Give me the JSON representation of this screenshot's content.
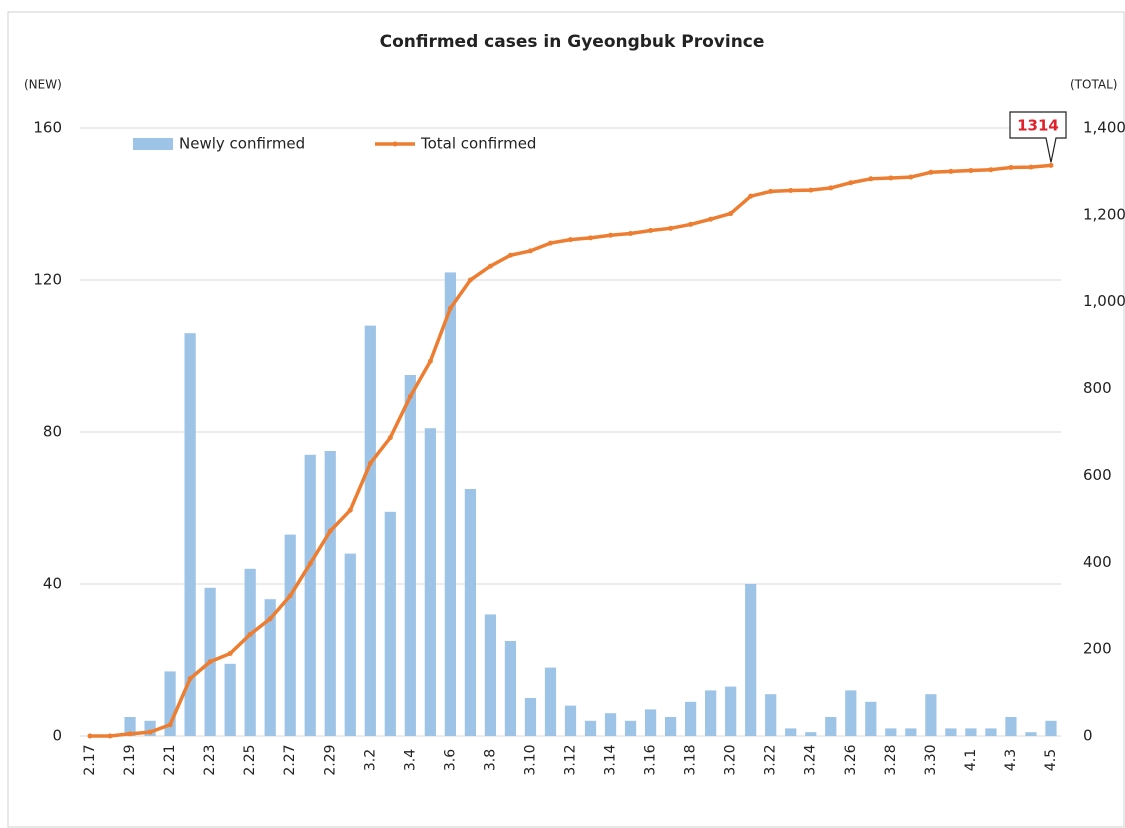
{
  "chart_data": {
    "type": "bar_line",
    "title": "Confirmed cases in Gyeongbuk Province",
    "y_label": "(NEW)",
    "y2_label": "(TOTAL)",
    "annotation": "1314",
    "categories": [
      "2.17",
      null,
      "2.19",
      null,
      "2.21",
      null,
      "2.23",
      null,
      "2.25",
      null,
      "2.27",
      null,
      "2.29",
      null,
      "3.2",
      null,
      "3.4",
      null,
      "3.6",
      null,
      "3.8",
      null,
      "3.10",
      null,
      "3.12",
      null,
      "3.14",
      null,
      "3.16",
      null,
      "3.18",
      null,
      "3.20",
      null,
      "3.22",
      null,
      "3.24",
      null,
      "3.26",
      null,
      "3.28",
      null,
      "3.30",
      null,
      "4.1",
      null,
      "4.3",
      null,
      "4.5"
    ],
    "series": [
      {
        "name": "Newly confirmed",
        "color": "#9dc3e6",
        "type": "bar",
        "axis": "y",
        "values": [
          0,
          0,
          5,
          4,
          17,
          106,
          39,
          19,
          44,
          36,
          53,
          74,
          75,
          48,
          108,
          59,
          95,
          81,
          122,
          65,
          32,
          25,
          10,
          18,
          8,
          4,
          6,
          4,
          7,
          5,
          9,
          12,
          13,
          40,
          11,
          2,
          1,
          5,
          12,
          9,
          2,
          2,
          11,
          2,
          2,
          2,
          5,
          1,
          4
        ]
      },
      {
        "name": "Total confirmed",
        "color": "#ed7d31",
        "type": "line",
        "axis": "y2",
        "values": [
          0,
          0,
          5,
          9,
          26,
          132,
          171,
          190,
          234,
          270,
          323,
          397,
          472,
          520,
          628,
          687,
          782,
          863,
          985,
          1050,
          1082,
          1107,
          1117,
          1135,
          1143,
          1147,
          1153,
          1157,
          1164,
          1169,
          1178,
          1190,
          1203,
          1243,
          1254,
          1256,
          1257,
          1262,
          1274,
          1283,
          1285,
          1287,
          1298,
          1300,
          1302,
          1304,
          1309,
          1310,
          1314
        ]
      }
    ],
    "ylim": [
      0,
      160
    ],
    "yticks": [
      0,
      40,
      80,
      120,
      160
    ],
    "y2lim": [
      0,
      1400
    ],
    "y2ticks": [
      0,
      200,
      400,
      600,
      800,
      {
        "value": 1000,
        "label": "1,000"
      },
      {
        "value": 1200,
        "label": "1,200"
      },
      {
        "value": 1400,
        "label": "1,400"
      }
    ],
    "grid": true,
    "legend": "top-left"
  }
}
